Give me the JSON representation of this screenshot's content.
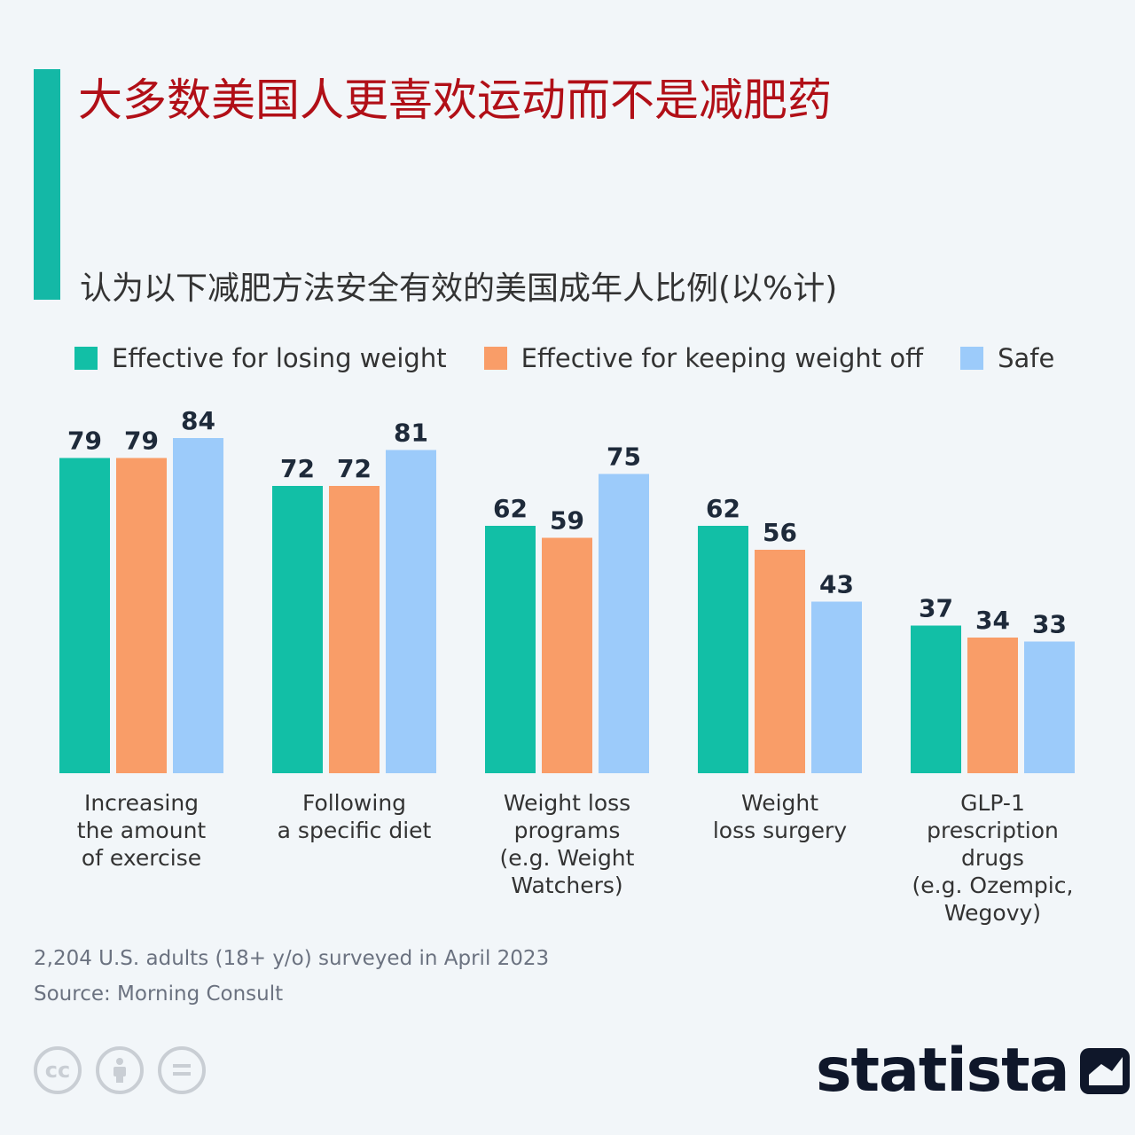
{
  "title": "大多数美国人更喜欢运动而不是减肥药",
  "subtitle": "认为以下减肥方法安全有效的美国成年人比例(以%计)",
  "colors": {
    "accent": "#14b8a6",
    "title": "#b10f17"
  },
  "legend": [
    {
      "label": "Effective for losing weight",
      "color": "#12bfa6"
    },
    {
      "label": "Effective for keeping weight off",
      "color": "#f99d68"
    },
    {
      "label": "Safe",
      "color": "#9ccbfa"
    }
  ],
  "chart_data": {
    "type": "bar",
    "categories": [
      [
        "Increasing",
        "the amount",
        "of exercise"
      ],
      [
        "Following",
        "a specific diet"
      ],
      [
        "Weight loss",
        "programs",
        "(e.g. Weight",
        "Watchers)"
      ],
      [
        "Weight",
        "loss surgery"
      ],
      [
        "GLP-1",
        "prescription",
        "drugs",
        "(e.g. Ozempic,",
        "Wegovy)"
      ]
    ],
    "series": [
      {
        "name": "Effective for losing weight",
        "color": "#12bfa6",
        "values": [
          79,
          72,
          62,
          62,
          37
        ]
      },
      {
        "name": "Effective for keeping weight off",
        "color": "#f99d68",
        "values": [
          79,
          72,
          59,
          56,
          34
        ]
      },
      {
        "name": "Safe",
        "color": "#9ccbfa",
        "values": [
          84,
          81,
          75,
          43,
          33
        ]
      }
    ],
    "ylim": [
      0,
      100
    ],
    "grid": false,
    "legend_position": "top",
    "data_labels": true
  },
  "footer": {
    "note": "2,204 U.S. adults (18+ y/o) surveyed in April 2023",
    "source": "Source: Morning Consult"
  },
  "license_icons": [
    "cc-icon",
    "attribution-icon",
    "no-derivatives-icon"
  ],
  "brand": "statista"
}
